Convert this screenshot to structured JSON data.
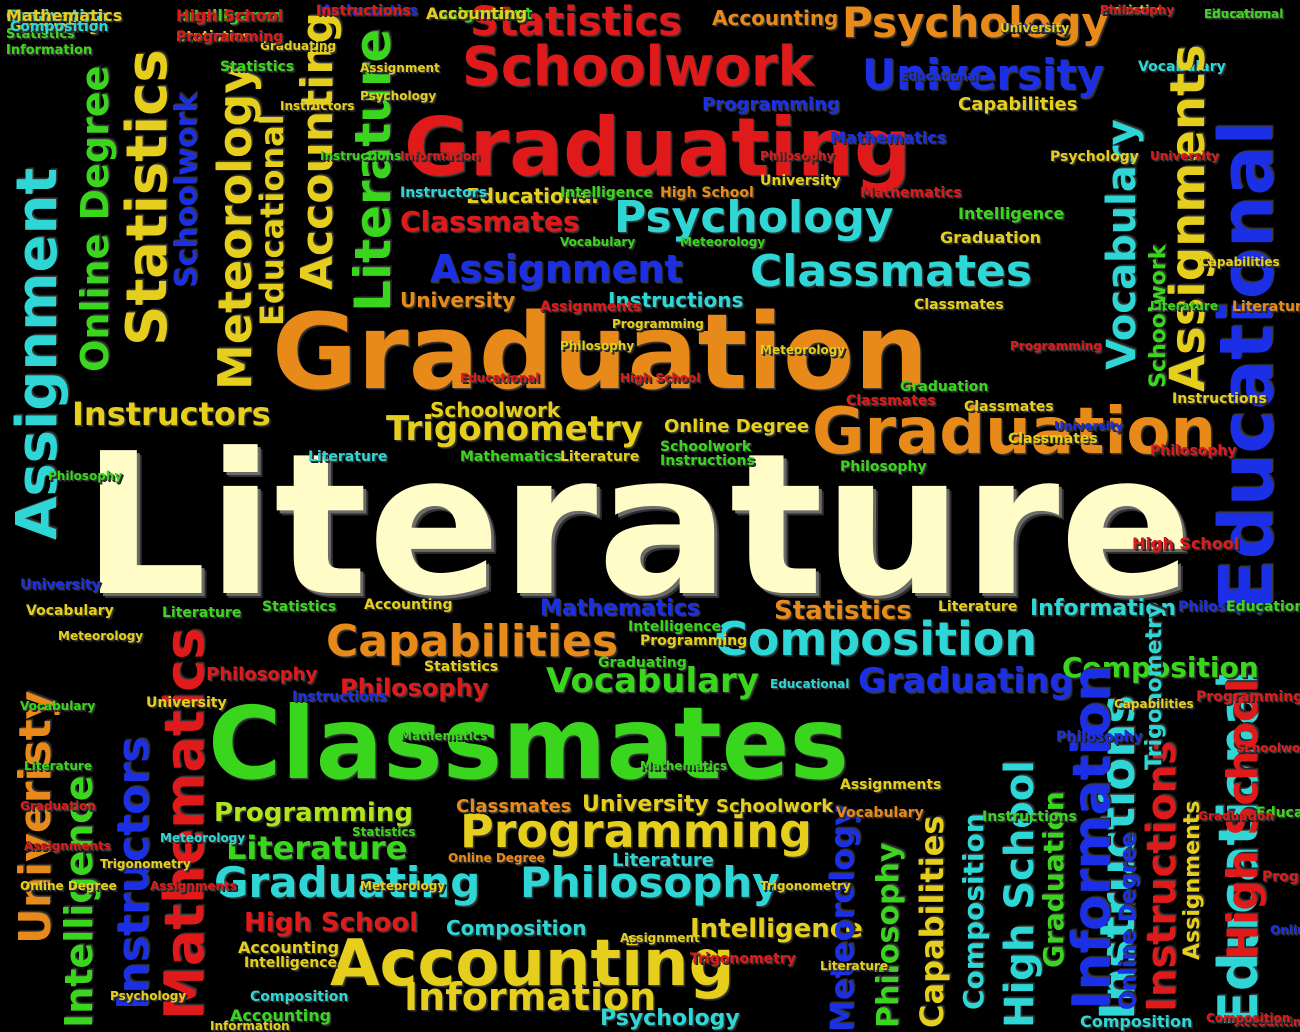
{
  "palette": {
    "background": "#000000",
    "cream": "#fffcc8",
    "red": "#e01a1a",
    "orange": "#e88a1a",
    "yellow": "#e6cf1c",
    "green": "#3ad61e",
    "lime": "#aee61c",
    "cyan": "#2ed6d6",
    "blue": "#1a2fe6",
    "light_blue": "#6b8be8"
  },
  "words": [
    {
      "text": "Literature",
      "color": "#fffcc8",
      "emphasis": "primary"
    },
    {
      "text": "Graduation",
      "color": "#e88a1a",
      "emphasis": "secondary"
    },
    {
      "text": "Classmates",
      "color": "#3ad61e",
      "emphasis": "secondary"
    },
    {
      "text": "Graduating",
      "color": "#e01a1a",
      "emphasis": "secondary"
    },
    {
      "text": "Graduation",
      "color": "#e88a1a"
    },
    {
      "text": "Educational",
      "color": "#1a2fe6"
    },
    {
      "text": "Educational",
      "color": "#2ed6d6"
    },
    {
      "text": "Accounting",
      "color": "#e6cf1c"
    },
    {
      "text": "Schoolwork",
      "color": "#e01a1a"
    },
    {
      "text": "Statistics",
      "color": "#e01a1a"
    },
    {
      "text": "Accounting",
      "color": "#e88a1a"
    },
    {
      "text": "Psychology",
      "color": "#e88a1a"
    },
    {
      "text": "University",
      "color": "#1a2fe6"
    },
    {
      "text": "Composition",
      "color": "#2ed6d6"
    },
    {
      "text": "Capabilities",
      "color": "#e88a1a"
    },
    {
      "text": "Programming",
      "color": "#e6cf1c"
    },
    {
      "text": "Psychology",
      "color": "#2ed6d6"
    },
    {
      "text": "Classmates",
      "color": "#2ed6d6"
    },
    {
      "text": "Assignment",
      "color": "#1a2fe6"
    },
    {
      "text": "Graduating",
      "color": "#2ed6d6"
    },
    {
      "text": "Philosophy",
      "color": "#2ed6d6"
    },
    {
      "text": "Vocabulary",
      "color": "#3ad61e"
    },
    {
      "text": "Graduating",
      "color": "#1a2fe6"
    },
    {
      "text": "Trigonometry",
      "color": "#e6cf1c"
    },
    {
      "text": "Instructors",
      "color": "#e6cf1c"
    },
    {
      "text": "Literature",
      "color": "#3ad61e"
    },
    {
      "text": "Information",
      "color": "#e6cf1c"
    },
    {
      "text": "Composition",
      "color": "#3ad61e"
    },
    {
      "text": "Intelligence",
      "color": "#e6cf1c"
    },
    {
      "text": "High School",
      "color": "#e01a1a"
    },
    {
      "text": "Programming",
      "color": "#aee61c"
    },
    {
      "text": "Graduation",
      "color": "#2ed6d6"
    },
    {
      "text": "Statistics",
      "color": "#e88a1a"
    },
    {
      "text": "Accounting",
      "color": "#e6cf1c"
    },
    {
      "text": "Classmates",
      "color": "#e01a1a"
    },
    {
      "text": "Educational",
      "color": "#e6cf1c"
    },
    {
      "text": "Programming",
      "color": "#1a2fe6"
    },
    {
      "text": "Capabilities",
      "color": "#e6cf1c"
    },
    {
      "text": "Instructions",
      "color": "#2ed6d6"
    },
    {
      "text": "University",
      "color": "#e88a1a"
    },
    {
      "text": "Schoolwork",
      "color": "#e6cf1c"
    },
    {
      "text": "Online Degree",
      "color": "#e6cf1c"
    },
    {
      "text": "Mathematics",
      "color": "#1a2fe6"
    },
    {
      "text": "Statistics",
      "color": "#e88a1a"
    },
    {
      "text": "Information",
      "color": "#2ed6d6"
    },
    {
      "text": "Philosophy",
      "color": "#e01a1a"
    },
    {
      "text": "Philosophy",
      "color": "#e01a1a"
    },
    {
      "text": "University",
      "color": "#e6cf1c"
    },
    {
      "text": "Schoolwork",
      "color": "#e6cf1c"
    },
    {
      "text": "Classmates",
      "color": "#e88a1a"
    },
    {
      "text": "Literature",
      "color": "#2ed6d6"
    },
    {
      "text": "Literature",
      "color": "#2ed6d6"
    },
    {
      "text": "High School",
      "color": "#e01a1a"
    },
    {
      "text": "Composition",
      "color": "#2ed6d6"
    },
    {
      "text": "Intelligence",
      "color": "#e6cf1c"
    },
    {
      "text": "Information",
      "color": "#e88a1a"
    },
    {
      "text": "Psychology",
      "color": "#2ed6d6"
    },
    {
      "text": "Composition",
      "color": "#2ed6d6"
    },
    {
      "text": "Accounting",
      "color": "#3ad61e"
    },
    {
      "text": "Intelligence",
      "color": "#3ad61e"
    },
    {
      "text": "Assignment",
      "color": "#2ed6d6"
    },
    {
      "text": "Statistics",
      "color": "#e6cf1c"
    },
    {
      "text": "Instructors",
      "color": "#1a2fe6"
    },
    {
      "text": "Instructions",
      "color": "#2ed6d6"
    },
    {
      "text": "Statistics",
      "color": "#e6cf1c"
    },
    {
      "text": "Graduating",
      "color": "#e6cf1c"
    },
    {
      "text": "Intelligence",
      "color": "#3ad61e"
    },
    {
      "text": "High School",
      "color": "#2ed6d6"
    },
    {
      "text": "Mathematics",
      "color": "#1a2fe6"
    },
    {
      "text": "Literature",
      "color": "#3ad61e"
    },
    {
      "text": "Assignment",
      "color": "#3ad61e"
    },
    {
      "text": "Vocabulary",
      "color": "#2ed6d6"
    },
    {
      "text": "Meteorology",
      "color": "#e6cf1c"
    },
    {
      "text": "Statistics",
      "color": "#e6cf1c"
    },
    {
      "text": "Online Degree",
      "color": "#3ad61e"
    },
    {
      "text": "Schoolwork",
      "color": "#1a2fe6"
    },
    {
      "text": "Educational",
      "color": "#e6cf1c"
    },
    {
      "text": "Accounting",
      "color": "#e6cf1c"
    },
    {
      "text": "Literature",
      "color": "#3ad61e"
    },
    {
      "text": "Statistics",
      "color": "#1a2fe6"
    },
    {
      "text": "Vocabulary",
      "color": "#2ed6d6"
    },
    {
      "text": "Assignments",
      "color": "#e6cf1c"
    },
    {
      "text": "Educational",
      "color": "#1a2fe6"
    },
    {
      "text": "Mathematics",
      "color": "#1a2fe6"
    },
    {
      "text": "Schoolwork",
      "color": "#3ad61e"
    },
    {
      "text": "University",
      "color": "#e6cf1c"
    },
    {
      "text": "Mathematics",
      "color": "#e01a1a"
    },
    {
      "text": "Instructors",
      "color": "#2ed6d6"
    },
    {
      "text": "Intelligence",
      "color": "#3ad61e"
    },
    {
      "text": "Univeristy",
      "color": "#e88a1a"
    },
    {
      "text": "Information",
      "color": "#1a2fe6"
    },
    {
      "text": "Instructions",
      "color": "#e01a1a"
    },
    {
      "text": "High School",
      "color": "#e01a1a"
    },
    {
      "text": "Philosophy",
      "color": "#3ad61e"
    },
    {
      "text": "Capabilities",
      "color": "#e6cf1c"
    },
    {
      "text": "Composition",
      "color": "#2ed6d6"
    },
    {
      "text": "Meteorology",
      "color": "#1a2fe6"
    },
    {
      "text": "High School",
      "color": "#e88a1a"
    },
    {
      "text": "Graduation",
      "color": "#3ad61e"
    },
    {
      "text": "Online Degree",
      "color": "#1a2fe6"
    },
    {
      "text": "Trigonometry",
      "color": "#2ed6d6"
    },
    {
      "text": "Assignments",
      "color": "#e6cf1c"
    },
    {
      "text": "Mathematics",
      "color": "#e01a1a"
    },
    {
      "text": "Graduation",
      "color": "#e6cf1c"
    },
    {
      "text": "Graduation",
      "color": "#3ad61e"
    },
    {
      "text": "Classmates",
      "color": "#e6cf1c"
    },
    {
      "text": "Classmates",
      "color": "#e01a1a"
    },
    {
      "text": "Classmates",
      "color": "#e6cf1c"
    },
    {
      "text": "Classmates",
      "color": "#e6cf1c"
    },
    {
      "text": "University",
      "color": "#1a2fe6"
    },
    {
      "text": "Philosophy",
      "color": "#e01a1a"
    },
    {
      "text": "Philosophy",
      "color": "#3ad61e"
    },
    {
      "text": "Intelligence",
      "color": "#3ad61e"
    },
    {
      "text": "Educational",
      "color": "#2ed6d6"
    },
    {
      "text": "Schoolwork",
      "color": "#3ad61e"
    },
    {
      "text": "Literature",
      "color": "#e6cf1c"
    },
    {
      "text": "Instructions",
      "color": "#3ad61e"
    },
    {
      "text": "Mathematics",
      "color": "#3ad61e"
    },
    {
      "text": "Instructions",
      "color": "#e6cf1c"
    },
    {
      "text": "Literature",
      "color": "#e6cf1c"
    },
    {
      "text": "University",
      "color": "#1a2fe6"
    },
    {
      "text": "Vocabulary",
      "color": "#e6cf1c"
    },
    {
      "text": "Literature",
      "color": "#3ad61e"
    },
    {
      "text": "Statistics",
      "color": "#3ad61e"
    },
    {
      "text": "Accounting",
      "color": "#e6cf1c"
    },
    {
      "text": "Intelligence",
      "color": "#3ad61e"
    },
    {
      "text": "Programming",
      "color": "#e6cf1c"
    },
    {
      "text": "Graduating",
      "color": "#3ad61e"
    },
    {
      "text": "Statistics",
      "color": "#e6cf1c"
    },
    {
      "text": "Instructions",
      "color": "#1a2fe6"
    },
    {
      "text": "University",
      "color": "#e6cf1c"
    },
    {
      "text": "Meteorology",
      "color": "#e6cf1c"
    },
    {
      "text": "Philosophy",
      "color": "#1a2fe6"
    },
    {
      "text": "Educational",
      "color": "#3ad61e"
    },
    {
      "text": "Capabilities",
      "color": "#e6cf1c"
    },
    {
      "text": "Philosophy",
      "color": "#1a2fe6"
    },
    {
      "text": "Mathematics",
      "color": "#3ad61e"
    },
    {
      "text": "Assignments",
      "color": "#e6cf1c"
    },
    {
      "text": "Vocabulary",
      "color": "#e88a1a"
    },
    {
      "text": "Instructions",
      "color": "#3ad61e"
    },
    {
      "text": "Statistics",
      "color": "#3ad61e"
    },
    {
      "text": "Online Degree",
      "color": "#e88a1a"
    },
    {
      "text": "Meteorology",
      "color": "#2ed6d6"
    },
    {
      "text": "Trigonometry",
      "color": "#e6cf1c"
    },
    {
      "text": "Trigonometry",
      "color": "#e01a1a"
    },
    {
      "text": "Assignment",
      "color": "#e6cf1c"
    },
    {
      "text": "Composition",
      "color": "#2ed6d6"
    },
    {
      "text": "Psychology",
      "color": "#e6cf1c"
    },
    {
      "text": "Information",
      "color": "#e6cf1c"
    },
    {
      "text": "Programming",
      "color": "#e01a1a"
    },
    {
      "text": "Schoolwork",
      "color": "#e01a1a"
    },
    {
      "text": "Educational",
      "color": "#3ad61e"
    },
    {
      "text": "Graduation",
      "color": "#e01a1a"
    },
    {
      "text": "Programming",
      "color": "#e01a1a"
    },
    {
      "text": "Online Degree",
      "color": "#1a2fe6"
    },
    {
      "text": "Accounting",
      "color": "#e01a1a"
    },
    {
      "text": "Composition",
      "color": "#e01a1a"
    },
    {
      "text": "Mathematics",
      "color": "#3ad61e"
    },
    {
      "text": "Assignments",
      "color": "#e01a1a"
    },
    {
      "text": "Programming",
      "color": "#e6cf1c"
    },
    {
      "text": "Meteorology",
      "color": "#e6cf1c"
    },
    {
      "text": "Programming",
      "color": "#e01a1a"
    },
    {
      "text": "Literature",
      "color": "#3ad61e"
    },
    {
      "text": "Literature",
      "color": "#e88a1a"
    },
    {
      "text": "Capabilities",
      "color": "#e6cf1c"
    },
    {
      "text": "University",
      "color": "#e01a1a"
    },
    {
      "text": "Psychology",
      "color": "#e6cf1c"
    },
    {
      "text": "Philosophy",
      "color": "#e01a1a"
    },
    {
      "text": "Instructions",
      "color": "#3ad61e"
    },
    {
      "text": "Instructors",
      "color": "#e6cf1c"
    },
    {
      "text": "Statistics",
      "color": "#3ad61e"
    },
    {
      "text": "Graduating",
      "color": "#e6cf1c"
    },
    {
      "text": "Assignment",
      "color": "#e6cf1c"
    },
    {
      "text": "Psychology",
      "color": "#e6cf1c"
    },
    {
      "text": "Information",
      "color": "#e01a1a"
    },
    {
      "text": "Vocabulary",
      "color": "#3ad61e"
    },
    {
      "text": "Meteorology",
      "color": "#3ad61e"
    },
    {
      "text": "Philosophy",
      "color": "#e6cf1c"
    },
    {
      "text": "Educational",
      "color": "#e01a1a"
    },
    {
      "text": "High School",
      "color": "#e01a1a"
    },
    {
      "text": "Philosophy",
      "color": "#3ad61e"
    },
    {
      "text": "Vocabulary",
      "color": "#3ad61e"
    },
    {
      "text": "Literature",
      "color": "#3ad61e"
    },
    {
      "text": "Graduation",
      "color": "#e01a1a"
    },
    {
      "text": "Assignments",
      "color": "#e01a1a"
    },
    {
      "text": "Online Degree",
      "color": "#e6cf1c"
    },
    {
      "text": "Assignments",
      "color": "#e01a1a"
    },
    {
      "text": "Meteorology",
      "color": "#e6cf1c"
    },
    {
      "text": "Trigonometry",
      "color": "#e6cf1c"
    },
    {
      "text": "Literature",
      "color": "#e6cf1c"
    },
    {
      "text": "Mathematics",
      "color": "#e6cf1c"
    },
    {
      "text": "Statistics",
      "color": "#3ad61e"
    },
    {
      "text": "Information",
      "color": "#3ad61e"
    },
    {
      "text": "High School",
      "color": "#e01a1a"
    },
    {
      "text": "Programming",
      "color": "#e01a1a"
    },
    {
      "text": "Composition",
      "color": "#2ed6d6"
    },
    {
      "text": "Instructions",
      "color": "#e01a1a"
    },
    {
      "text": "Accounting",
      "color": "#e6cf1c"
    },
    {
      "text": "Philosophy",
      "color": "#e01a1a"
    },
    {
      "text": "Educational",
      "color": "#3ad61e"
    },
    {
      "text": "University",
      "color": "#e6cf1c"
    }
  ]
}
